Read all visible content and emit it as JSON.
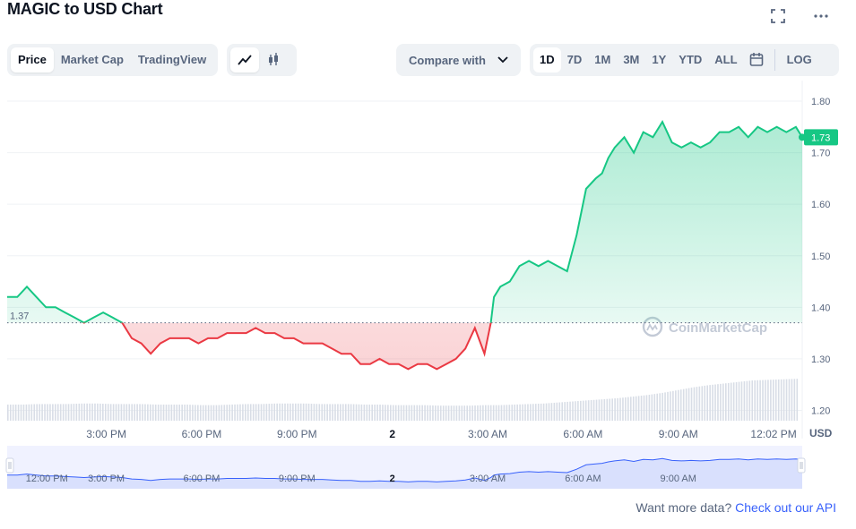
{
  "header": {
    "title": "MAGIC to USD Chart"
  },
  "toolbar": {
    "view_tabs": [
      "Price",
      "Market Cap",
      "TradingView"
    ],
    "active_view": "Price",
    "chart_type_icons": [
      "line-chart-icon",
      "candlestick-icon"
    ],
    "compare_label": "Compare with",
    "ranges": [
      "1D",
      "7D",
      "1M",
      "3M",
      "1Y",
      "YTD",
      "ALL"
    ],
    "active_range": "1D",
    "log_label": "LOG"
  },
  "footer": {
    "text": "Want more data?",
    "link": "Check out our API"
  },
  "colors": {
    "up": "#16c784",
    "down": "#ea3943",
    "navigator": "#3861fb"
  },
  "chart_data": {
    "type": "line",
    "currency_label": "USD",
    "reference_value": 1.37,
    "reference_label": "1.37",
    "current_value": 1.73,
    "current_label": "1.73",
    "watermark": "CoinMarketCap",
    "ylim": [
      1.18,
      1.84
    ],
    "yticks": [
      1.2,
      1.3,
      1.4,
      1.5,
      1.6,
      1.7,
      1.8
    ],
    "ytick_labels": [
      "1.20",
      "1.30",
      "1.40",
      "1.50",
      "1.60",
      "1.70",
      "1.80"
    ],
    "xlim": [
      11.88,
      36.9
    ],
    "xticks": [
      15,
      18,
      21,
      24,
      27,
      30,
      33,
      36
    ],
    "xtick_labels": [
      "3:00 PM",
      "6:00 PM",
      "9:00 PM",
      "2",
      "3:00 AM",
      "6:00 AM",
      "9:00 AM",
      "12:02 PM"
    ],
    "x_unit": "hours",
    "series": [
      {
        "x": [
          11.88,
          12.2,
          12.5,
          12.8,
          13.1,
          13.4,
          13.7,
          14.0,
          14.3,
          14.6,
          14.9,
          15.2,
          15.5,
          15.8,
          16.1,
          16.4,
          16.7,
          17.0,
          17.3,
          17.6,
          17.9,
          18.2,
          18.5,
          18.8,
          19.1,
          19.4,
          19.7,
          20.0,
          20.3,
          20.6,
          20.9,
          21.2,
          21.5,
          21.8,
          22.1,
          22.4,
          22.7,
          23.0,
          23.3,
          23.6,
          23.9,
          24.2,
          24.5,
          24.8,
          25.1,
          25.4,
          25.7,
          26.0,
          26.3,
          26.6,
          26.9,
          27.1,
          27.2,
          27.4,
          27.7,
          28.0,
          28.3,
          28.6,
          28.9,
          29.2,
          29.5,
          29.8,
          30.1,
          30.4,
          30.6,
          30.8,
          31.0,
          31.3,
          31.6,
          31.9,
          32.2,
          32.5,
          32.8,
          33.1,
          33.4,
          33.7,
          34.0,
          34.3,
          34.6,
          34.9,
          35.2,
          35.5,
          35.8,
          36.1,
          36.4,
          36.7,
          36.9
        ],
        "values": [
          1.42,
          1.42,
          1.44,
          1.42,
          1.4,
          1.4,
          1.39,
          1.38,
          1.37,
          1.38,
          1.39,
          1.38,
          1.37,
          1.34,
          1.33,
          1.31,
          1.33,
          1.34,
          1.34,
          1.34,
          1.33,
          1.34,
          1.34,
          1.35,
          1.35,
          1.35,
          1.36,
          1.35,
          1.35,
          1.34,
          1.34,
          1.33,
          1.33,
          1.33,
          1.32,
          1.31,
          1.31,
          1.29,
          1.29,
          1.3,
          1.29,
          1.29,
          1.28,
          1.29,
          1.29,
          1.28,
          1.29,
          1.3,
          1.32,
          1.36,
          1.31,
          1.37,
          1.42,
          1.44,
          1.45,
          1.48,
          1.49,
          1.48,
          1.49,
          1.48,
          1.47,
          1.54,
          1.63,
          1.65,
          1.66,
          1.69,
          1.71,
          1.73,
          1.7,
          1.74,
          1.73,
          1.76,
          1.72,
          1.71,
          1.72,
          1.71,
          1.72,
          1.74,
          1.74,
          1.75,
          1.73,
          1.75,
          1.74,
          1.75,
          1.74,
          1.75,
          1.73
        ]
      }
    ],
    "volume": [
      0.3,
      0.3,
      0.31,
      0.31,
      0.31,
      0.32,
      0.32,
      0.31,
      0.31,
      0.31,
      0.3,
      0.3,
      0.3,
      0.29,
      0.29,
      0.3,
      0.31,
      0.31,
      0.32,
      0.32,
      0.32,
      0.31,
      0.31,
      0.31,
      0.3,
      0.3,
      0.29,
      0.29,
      0.29,
      0.28,
      0.28,
      0.28,
      0.29,
      0.29,
      0.3,
      0.31,
      0.32,
      0.34,
      0.36,
      0.38,
      0.4,
      0.42,
      0.45,
      0.48,
      0.52,
      0.57,
      0.62,
      0.66,
      0.69,
      0.72,
      0.75,
      0.76,
      0.77,
      0.78
    ],
    "navigator": {
      "xtick_labels": [
        "12:00 PM",
        "3:00 PM",
        "6:00 PM",
        "9:00 PM",
        "2",
        "3:00 AM",
        "6:00 AM",
        "9:00 AM"
      ],
      "xticks": [
        12,
        15,
        18,
        21,
        24,
        27,
        30,
        33
      ]
    }
  }
}
